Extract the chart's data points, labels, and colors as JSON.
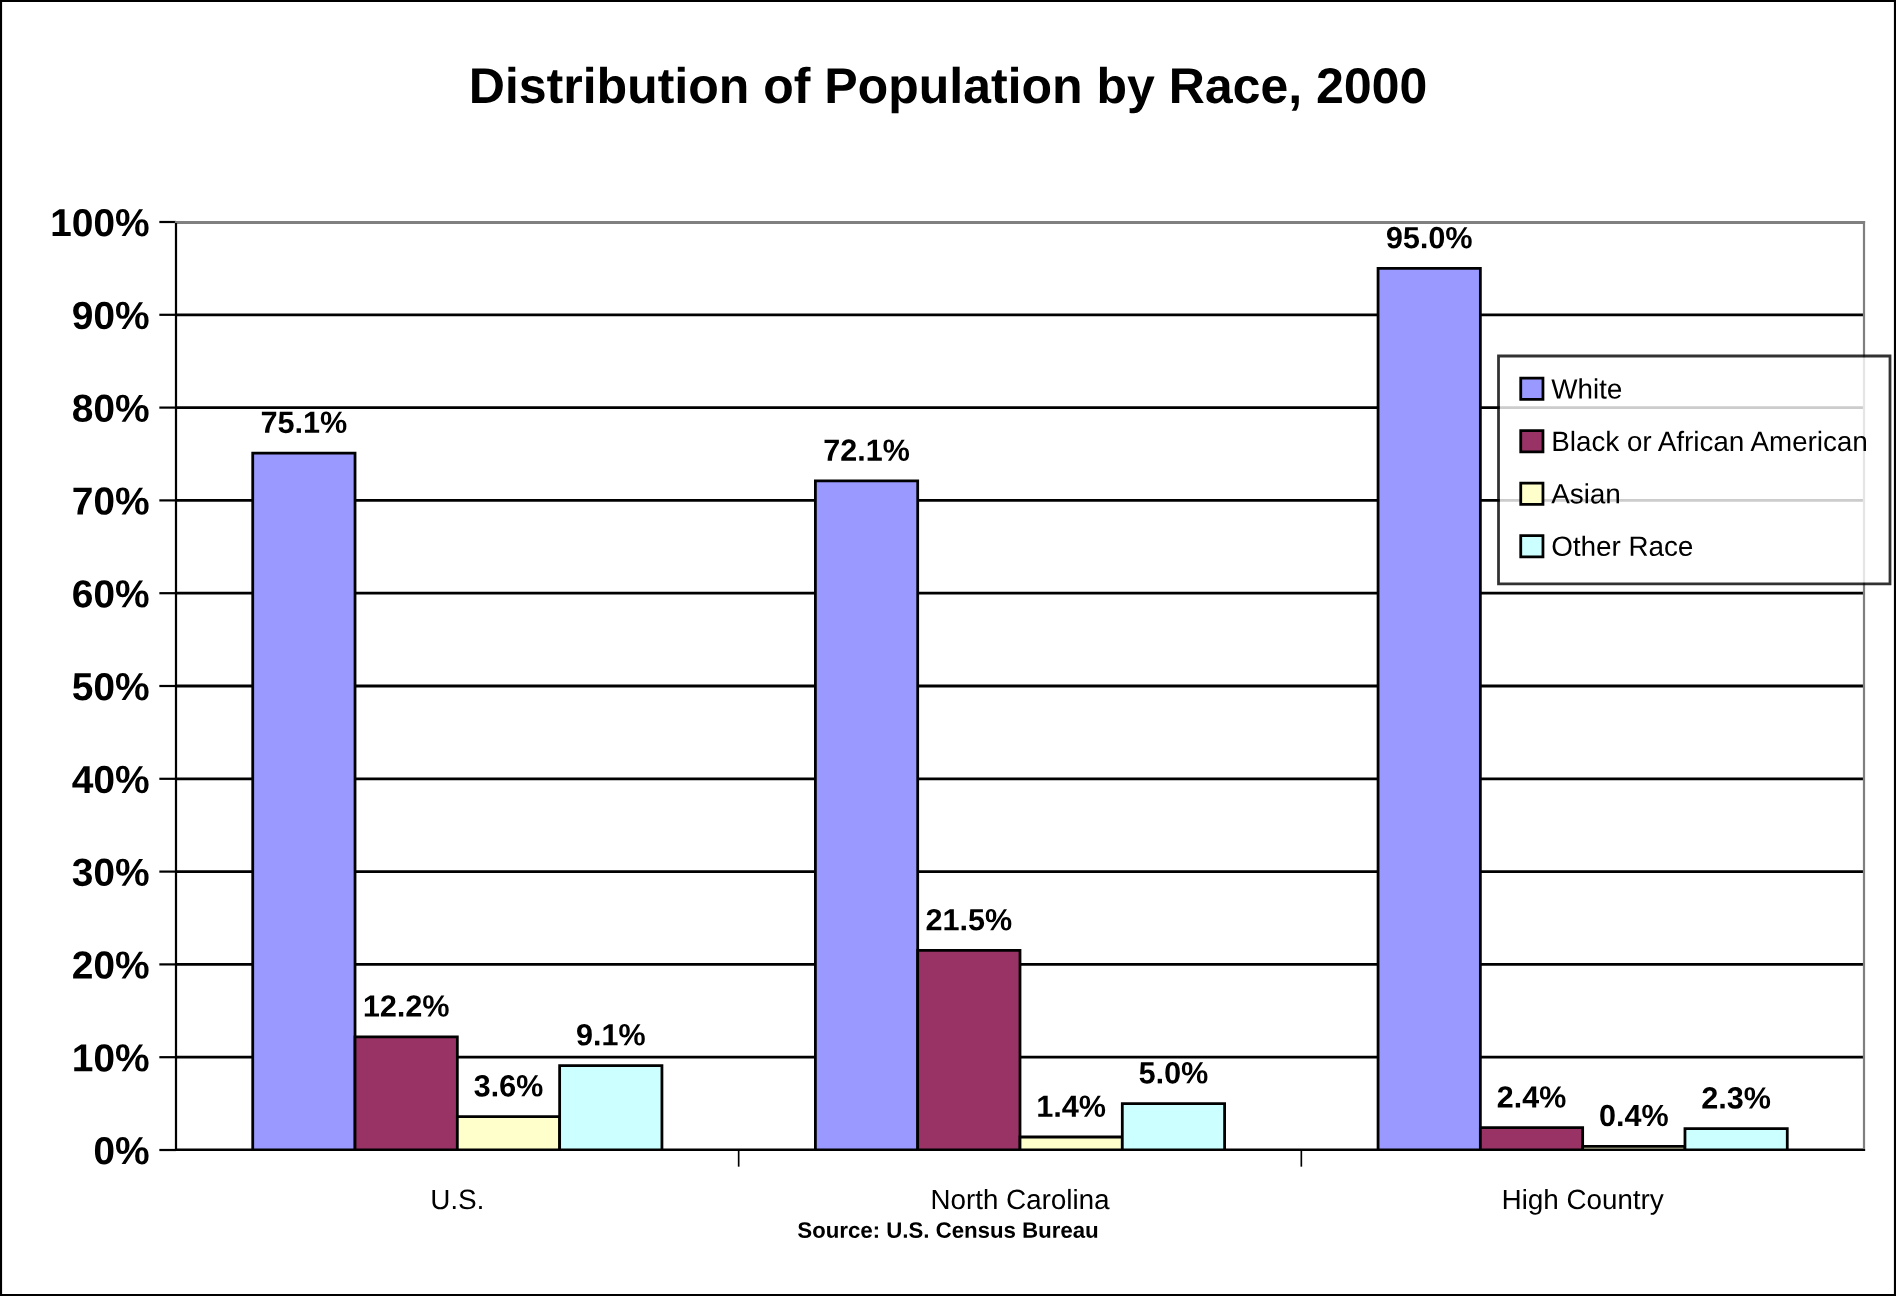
{
  "chart_data": {
    "type": "bar",
    "title": "Distribution of Population by Race, 2000",
    "categories": [
      "U.S.",
      "North Carolina",
      "High Country"
    ],
    "series": [
      {
        "name": "White",
        "color": "#9999ff",
        "values": [
          75.1,
          72.1,
          95.0
        ],
        "value_labels": [
          "75.1%",
          "72.1%",
          "95.0%"
        ]
      },
      {
        "name": "Black or African American",
        "color": "#993366",
        "values": [
          12.2,
          21.5,
          2.4
        ],
        "value_labels": [
          "12.2%",
          "21.5%",
          "2.4%"
        ]
      },
      {
        "name": "Asian",
        "color": "#ffffcc",
        "values": [
          3.6,
          1.4,
          0.4
        ],
        "value_labels": [
          "3.6%",
          "1.4%",
          "0.4%"
        ]
      },
      {
        "name": "Other Race",
        "color": "#ccffff",
        "values": [
          9.1,
          5.0,
          2.3
        ],
        "value_labels": [
          "9.1%",
          "5.0%",
          "2.3%"
        ]
      }
    ],
    "ylim": [
      0,
      100
    ],
    "yticks": [
      {
        "value": 0,
        "label": "0%"
      },
      {
        "value": 10,
        "label": "10%"
      },
      {
        "value": 20,
        "label": "20%"
      },
      {
        "value": 30,
        "label": "30%"
      },
      {
        "value": 40,
        "label": "40%"
      },
      {
        "value": 50,
        "label": "50%"
      },
      {
        "value": 60,
        "label": "60%"
      },
      {
        "value": 70,
        "label": "70%"
      },
      {
        "value": 80,
        "label": "80%"
      },
      {
        "value": 90,
        "label": "90%"
      },
      {
        "value": 100,
        "label": "100%"
      }
    ],
    "grid": "y",
    "legend": "right",
    "annotations": [
      "Source: U.S. Census Bureau"
    ]
  }
}
